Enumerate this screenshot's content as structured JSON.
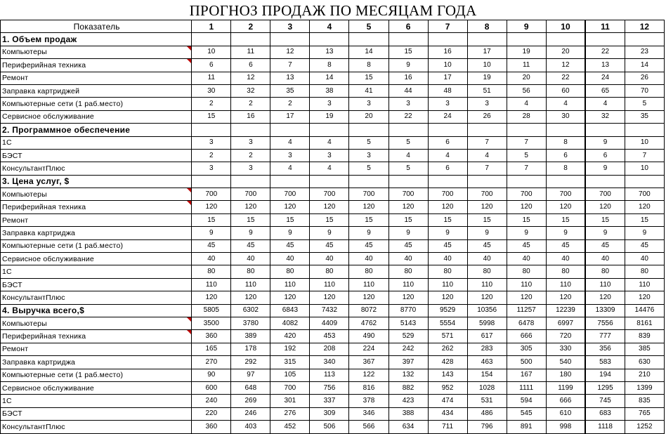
{
  "title": "ПРОГНОЗ ПРОДАЖ ПО МЕСЯЦАМ ГОДА",
  "header": {
    "label": "Показатель",
    "months": [
      "1",
      "2",
      "3",
      "4",
      "5",
      "6",
      "7",
      "8",
      "9",
      "10",
      "11",
      "12"
    ]
  },
  "rows": [
    {
      "type": "section",
      "label": "1. Объем продаж",
      "values": [
        "",
        "",
        "",
        "",
        "",
        "",
        "",
        "",
        "",
        "",
        "",
        ""
      ]
    },
    {
      "type": "data",
      "label": "Компьютеры",
      "comment": true,
      "values": [
        "10",
        "11",
        "12",
        "13",
        "14",
        "15",
        "16",
        "17",
        "19",
        "20",
        "22",
        "23"
      ]
    },
    {
      "type": "data",
      "label": "Периферийная техника",
      "comment": true,
      "values": [
        "6",
        "6",
        "7",
        "8",
        "8",
        "9",
        "10",
        "10",
        "11",
        "12",
        "13",
        "14"
      ]
    },
    {
      "type": "data",
      "label": "Ремонт",
      "values": [
        "11",
        "12",
        "13",
        "14",
        "15",
        "16",
        "17",
        "19",
        "20",
        "22",
        "24",
        "26"
      ]
    },
    {
      "type": "data",
      "label": "Заправка картриджей",
      "values": [
        "30",
        "32",
        "35",
        "38",
        "41",
        "44",
        "48",
        "51",
        "56",
        "60",
        "65",
        "70"
      ]
    },
    {
      "type": "data",
      "label": "Компьютерные сети (1 раб.место)",
      "values": [
        "2",
        "2",
        "2",
        "3",
        "3",
        "3",
        "3",
        "3",
        "4",
        "4",
        "4",
        "5"
      ]
    },
    {
      "type": "data",
      "label": "Сервисное обслуживание",
      "values": [
        "15",
        "16",
        "17",
        "19",
        "20",
        "22",
        "24",
        "26",
        "28",
        "30",
        "32",
        "35"
      ]
    },
    {
      "type": "section",
      "label": "2. Программное обеспечение",
      "values": [
        "",
        "",
        "",
        "",
        "",
        "",
        "",
        "",
        "",
        "",
        "",
        ""
      ]
    },
    {
      "type": "data",
      "label": "1С",
      "values": [
        "3",
        "3",
        "4",
        "4",
        "5",
        "5",
        "6",
        "7",
        "7",
        "8",
        "9",
        "10"
      ]
    },
    {
      "type": "data",
      "label": "БЭСТ",
      "values": [
        "2",
        "2",
        "3",
        "3",
        "3",
        "4",
        "4",
        "4",
        "5",
        "6",
        "6",
        "7"
      ]
    },
    {
      "type": "data",
      "label": "КонсультантПлюс",
      "values": [
        "3",
        "3",
        "4",
        "4",
        "5",
        "5",
        "6",
        "7",
        "7",
        "8",
        "9",
        "10"
      ]
    },
    {
      "type": "section",
      "label": "3. Цена услуг, $",
      "values": [
        "",
        "",
        "",
        "",
        "",
        "",
        "",
        "",
        "",
        "",
        "",
        ""
      ]
    },
    {
      "type": "data",
      "label": "Компьютеры",
      "comment": true,
      "values": [
        "700",
        "700",
        "700",
        "700",
        "700",
        "700",
        "700",
        "700",
        "700",
        "700",
        "700",
        "700"
      ]
    },
    {
      "type": "data",
      "label": "Периферийная техника",
      "comment": true,
      "values": [
        "120",
        "120",
        "120",
        "120",
        "120",
        "120",
        "120",
        "120",
        "120",
        "120",
        "120",
        "120"
      ]
    },
    {
      "type": "data",
      "label": "Ремонт",
      "values": [
        "15",
        "15",
        "15",
        "15",
        "15",
        "15",
        "15",
        "15",
        "15",
        "15",
        "15",
        "15"
      ]
    },
    {
      "type": "data",
      "label": "Заправка картриджа",
      "values": [
        "9",
        "9",
        "9",
        "9",
        "9",
        "9",
        "9",
        "9",
        "9",
        "9",
        "9",
        "9"
      ]
    },
    {
      "type": "data",
      "label": "Компьютерные сети (1 раб.место)",
      "values": [
        "45",
        "45",
        "45",
        "45",
        "45",
        "45",
        "45",
        "45",
        "45",
        "45",
        "45",
        "45"
      ]
    },
    {
      "type": "data",
      "label": "Сервисное обслуживание",
      "values": [
        "40",
        "40",
        "40",
        "40",
        "40",
        "40",
        "40",
        "40",
        "40",
        "40",
        "40",
        "40"
      ]
    },
    {
      "type": "data",
      "label": "1С",
      "values": [
        "80",
        "80",
        "80",
        "80",
        "80",
        "80",
        "80",
        "80",
        "80",
        "80",
        "80",
        "80"
      ]
    },
    {
      "type": "data",
      "label": "БЭСТ",
      "values": [
        "110",
        "110",
        "110",
        "110",
        "110",
        "110",
        "110",
        "110",
        "110",
        "110",
        "110",
        "110"
      ]
    },
    {
      "type": "data",
      "label": "КонсультантПлюс",
      "values": [
        "120",
        "120",
        "120",
        "120",
        "120",
        "120",
        "120",
        "120",
        "120",
        "120",
        "120",
        "120"
      ]
    },
    {
      "type": "section",
      "label": "4. Выручка всего,$",
      "values": [
        "5805",
        "6302",
        "6843",
        "7432",
        "8072",
        "8770",
        "9529",
        "10356",
        "11257",
        "12239",
        "13309",
        "14476"
      ]
    },
    {
      "type": "data",
      "label": "Компьютеры",
      "comment": true,
      "values": [
        "3500",
        "3780",
        "4082",
        "4409",
        "4762",
        "5143",
        "5554",
        "5998",
        "6478",
        "6997",
        "7556",
        "8161"
      ]
    },
    {
      "type": "data",
      "label": "Периферийная техника",
      "comment": true,
      "values": [
        "360",
        "389",
        "420",
        "453",
        "490",
        "529",
        "571",
        "617",
        "666",
        "720",
        "777",
        "839"
      ]
    },
    {
      "type": "data",
      "label": "Ремонт",
      "values": [
        "165",
        "178",
        "192",
        "208",
        "224",
        "242",
        "262",
        "283",
        "305",
        "330",
        "356",
        "385"
      ]
    },
    {
      "type": "data",
      "label": "Заправка картриджа",
      "values": [
        "270",
        "292",
        "315",
        "340",
        "367",
        "397",
        "428",
        "463",
        "500",
        "540",
        "583",
        "630"
      ]
    },
    {
      "type": "data",
      "label": "Компьютерные сети (1 раб.место)",
      "values": [
        "90",
        "97",
        "105",
        "113",
        "122",
        "132",
        "143",
        "154",
        "167",
        "180",
        "194",
        "210"
      ]
    },
    {
      "type": "data",
      "label": "Сервисное обслуживание",
      "values": [
        "600",
        "648",
        "700",
        "756",
        "816",
        "882",
        "952",
        "1028",
        "1111",
        "1199",
        "1295",
        "1399"
      ]
    },
    {
      "type": "data",
      "label": "1С",
      "values": [
        "240",
        "269",
        "301",
        "337",
        "378",
        "423",
        "474",
        "531",
        "594",
        "666",
        "745",
        "835"
      ]
    },
    {
      "type": "data",
      "label": "БЭСТ",
      "values": [
        "220",
        "246",
        "276",
        "309",
        "346",
        "388",
        "434",
        "486",
        "545",
        "610",
        "683",
        "765"
      ]
    },
    {
      "type": "data",
      "label": "КонсультантПлюс",
      "values": [
        "360",
        "403",
        "452",
        "506",
        "566",
        "634",
        "711",
        "796",
        "891",
        "998",
        "1118",
        "1252"
      ]
    }
  ]
}
